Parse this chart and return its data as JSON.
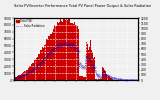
{
  "title": "Solar PV/Inverter Performance Total PV Panel Power Output & Solar Radiation",
  "bg_color": "#f0f0f0",
  "plot_bg": "#f0f0f0",
  "grid_color": "#aaaaaa",
  "bar_color": "#cc0000",
  "line_color": "#0000bb",
  "n_points": 144,
  "ylim_left": [
    0,
    9000
  ],
  "ylim_right": [
    0,
    1200
  ],
  "title_fontsize": 3.0,
  "axis_fontsize": 2.8,
  "legend_label_pv": "Total (W)",
  "legend_label_sr": "--- Solar Radiation"
}
